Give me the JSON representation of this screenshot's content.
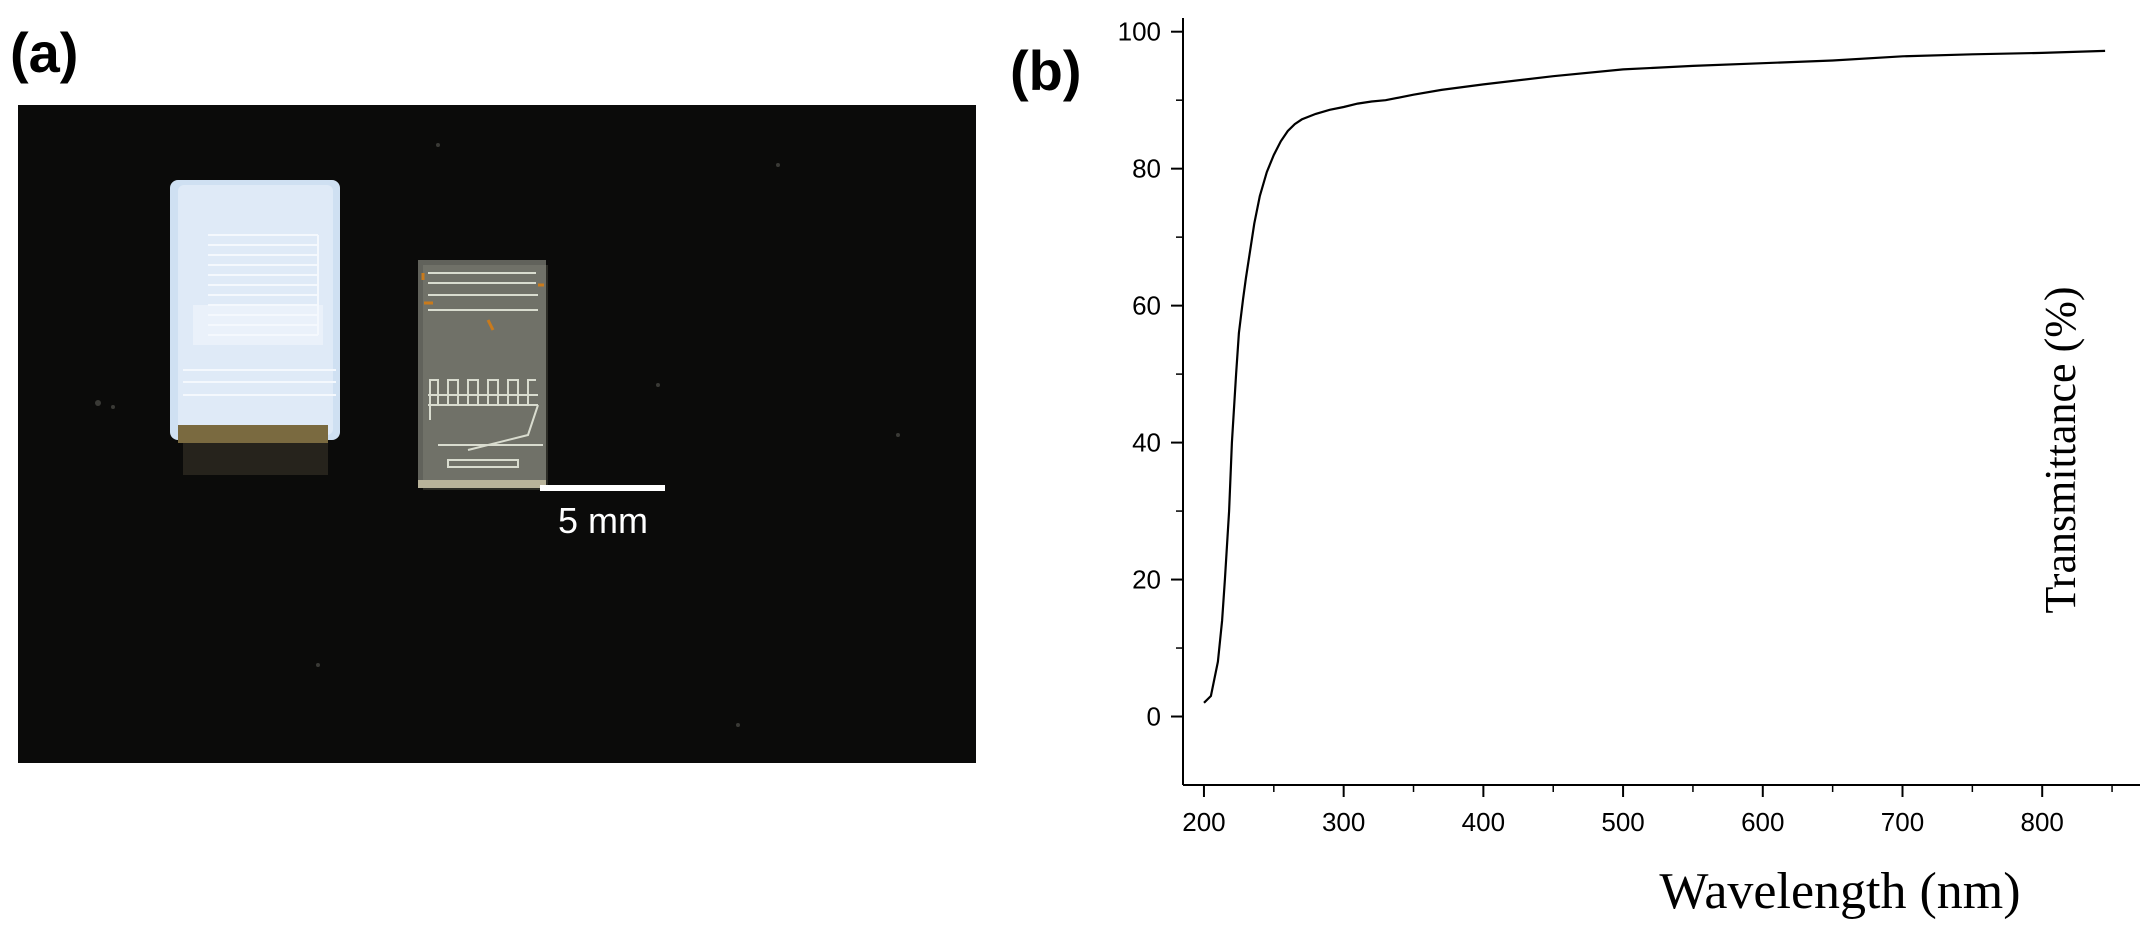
{
  "panel_a": {
    "label": "(a)",
    "scale_bar_text": "5 mm"
  },
  "panel_b": {
    "label": "(b)"
  },
  "colors": {
    "photo_background": "#0b0b0a",
    "pdms_chip": "#cfe0f2",
    "glass_chip": "#c9ccc2",
    "electrode_trace": "#c97a1c",
    "curve": "#000000"
  },
  "chart_data": {
    "type": "line",
    "title": "",
    "xlabel": "Wavelength (nm)",
    "ylabel": "Transmittance (%)",
    "xlim": [
      185,
      870
    ],
    "ylim": [
      -10,
      102
    ],
    "xticks": [
      200,
      300,
      400,
      500,
      600,
      700,
      800
    ],
    "yticks": [
      0,
      20,
      40,
      60,
      80,
      100
    ],
    "grid": false,
    "legend": "none",
    "series": [
      {
        "x": [
          200,
          205,
          210,
          213,
          215,
          218,
          220,
          223,
          225,
          228,
          230,
          233,
          236,
          240,
          245,
          250,
          255,
          260,
          265,
          270,
          280,
          290,
          300,
          310,
          320,
          330,
          350,
          370,
          400,
          450,
          500,
          550,
          600,
          650,
          700,
          750,
          800,
          845
        ],
        "y": [
          2,
          3,
          8,
          14,
          20,
          30,
          40,
          50,
          56,
          61,
          64,
          68,
          72,
          76,
          79.5,
          82,
          84,
          85.5,
          86.5,
          87.2,
          88,
          88.6,
          89,
          89.5,
          89.8,
          90,
          90.8,
          91.5,
          92.3,
          93.5,
          94.5,
          95,
          95.4,
          95.8,
          96.4,
          96.7,
          96.9,
          97.2
        ]
      }
    ]
  }
}
